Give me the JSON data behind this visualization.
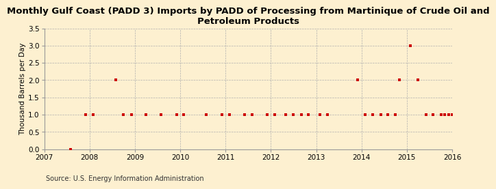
{
  "title": "Monthly Gulf Coast (PADD 3) Imports by PADD of Processing from Martinique of Crude Oil and\nPetroleum Products",
  "ylabel": "Thousand Barrels per Day",
  "source": "Source: U.S. Energy Information Administration",
  "background_color": "#fdf0d0",
  "marker_color": "#cc0000",
  "xlim": [
    2007,
    2016
  ],
  "ylim": [
    0.0,
    3.5
  ],
  "yticks": [
    0.0,
    0.5,
    1.0,
    1.5,
    2.0,
    2.5,
    3.0,
    3.5
  ],
  "xticks": [
    2007,
    2008,
    2009,
    2010,
    2011,
    2012,
    2013,
    2014,
    2015,
    2016
  ],
  "data_x": [
    2007.58,
    2007.92,
    2008.08,
    2008.58,
    2008.75,
    2008.92,
    2009.25,
    2009.58,
    2009.92,
    2010.08,
    2010.58,
    2010.92,
    2011.08,
    2011.42,
    2011.58,
    2011.92,
    2012.08,
    2012.33,
    2012.5,
    2012.67,
    2012.83,
    2013.08,
    2013.25,
    2013.92,
    2014.08,
    2014.25,
    2014.42,
    2014.58,
    2014.75,
    2014.83,
    2015.08,
    2015.25,
    2015.42,
    2015.58,
    2015.75,
    2015.83,
    2015.92,
    2016.0
  ],
  "data_y": [
    0.0,
    1.0,
    1.0,
    2.0,
    1.0,
    1.0,
    1.0,
    1.0,
    1.0,
    1.0,
    1.0,
    1.0,
    1.0,
    1.0,
    1.0,
    1.0,
    1.0,
    1.0,
    1.0,
    1.0,
    1.0,
    1.0,
    1.0,
    2.0,
    1.0,
    1.0,
    1.0,
    1.0,
    1.0,
    2.0,
    3.0,
    2.0,
    1.0,
    1.0,
    1.0,
    1.0,
    1.0,
    1.0
  ],
  "title_fontsize": 9.5,
  "axis_fontsize": 7.5,
  "source_fontsize": 7.0,
  "ylabel_fontsize": 7.5
}
